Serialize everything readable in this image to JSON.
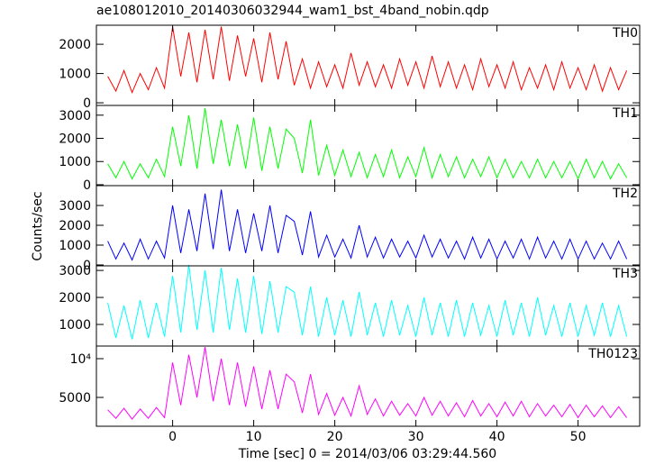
{
  "chart_data": {
    "type": "line",
    "title": "ae108012010_20140306032944_wam1_bst_4band_nobin.qdp",
    "xlabel": "Time [sec] 0 = 2014/03/06 03:29:44.560",
    "ylabel": "Counts/sec",
    "xlim": [
      -9.4,
      57.6
    ],
    "xticks": [
      0,
      10,
      20,
      30,
      40,
      50
    ],
    "x": [
      -8,
      -7,
      -6,
      -5,
      -4,
      -3,
      -2,
      -1,
      0,
      1,
      2,
      3,
      4,
      5,
      6,
      7,
      8,
      9,
      10,
      11,
      12,
      13,
      14,
      15,
      16,
      17,
      18,
      19,
      20,
      21,
      22,
      23,
      24,
      25,
      26,
      27,
      28,
      29,
      30,
      31,
      32,
      33,
      34,
      35,
      36,
      37,
      38,
      39,
      40,
      41,
      42,
      43,
      44,
      45,
      46,
      47,
      48,
      49,
      50,
      51,
      52,
      53,
      54,
      55,
      56
    ],
    "panels": [
      {
        "name": "TH0",
        "color": "#ff0000",
        "ylim": [
          -90,
          2650
        ],
        "yticks": [
          0,
          1000,
          2000
        ],
        "values": [
          900,
          400,
          1100,
          350,
          1000,
          450,
          1200,
          500,
          2600,
          900,
          2400,
          700,
          2500,
          800,
          2600,
          750,
          2300,
          900,
          2200,
          700,
          2400,
          800,
          2100,
          600,
          1500,
          500,
          1400,
          550,
          1300,
          500,
          1700,
          600,
          1400,
          550,
          1300,
          500,
          1500,
          600,
          1400,
          500,
          1600,
          550,
          1400,
          500,
          1300,
          450,
          1500,
          550,
          1300,
          500,
          1400,
          450,
          1200,
          500,
          1300,
          450,
          1400,
          500,
          1200,
          450,
          1300,
          400,
          1200,
          450,
          1100
        ]
      },
      {
        "name": "TH1",
        "color": "#00ff00",
        "ylim": [
          -40,
          3420
        ],
        "yticks": [
          0,
          1000,
          2000,
          3000
        ],
        "values": [
          900,
          300,
          1000,
          250,
          900,
          300,
          1100,
          350,
          2500,
          800,
          3000,
          700,
          3300,
          900,
          2800,
          800,
          2600,
          700,
          2900,
          600,
          2500,
          700,
          2400,
          2000,
          500,
          2800,
          400,
          1700,
          400,
          1500,
          350,
          1400,
          300,
          1300,
          350,
          1500,
          300,
          1200,
          350,
          1600,
          300,
          1300,
          350,
          1200,
          300,
          1100,
          350,
          1200,
          300,
          1100,
          300,
          1000,
          300,
          1100,
          300,
          1000,
          300,
          1000,
          250,
          1100,
          300,
          1000,
          250,
          900,
          300
        ]
      },
      {
        "name": "TH2",
        "color": "#0000ff",
        "ylim": [
          -45,
          4000
        ],
        "yticks": [
          0,
          1000,
          2000,
          3000
        ],
        "values": [
          1200,
          300,
          1100,
          250,
          1300,
          300,
          1200,
          350,
          3000,
          600,
          2800,
          700,
          3600,
          800,
          3800,
          700,
          2800,
          600,
          2600,
          700,
          3000,
          600,
          2500,
          2200,
          500,
          2700,
          400,
          1500,
          400,
          1300,
          350,
          2000,
          400,
          1400,
          350,
          1300,
          400,
          1200,
          350,
          1500,
          400,
          1300,
          350,
          1200,
          300,
          1400,
          350,
          1300,
          300,
          1200,
          350,
          1300,
          300,
          1400,
          350,
          1200,
          300,
          1300,
          300,
          1200,
          300,
          1100,
          300,
          1200,
          300
        ]
      },
      {
        "name": "TH3",
        "color": "#00ffff",
        "ylim": [
          200,
          3170
        ],
        "yticks": [
          1000,
          2000,
          3000
        ],
        "values": [
          1800,
          500,
          1700,
          450,
          1900,
          500,
          1800,
          550,
          2800,
          700,
          3200,
          800,
          3000,
          700,
          3100,
          800,
          2700,
          700,
          2800,
          650,
          2600,
          700,
          2400,
          2200,
          600,
          2400,
          550,
          2000,
          600,
          1900,
          550,
          2200,
          600,
          1800,
          550,
          1900,
          600,
          1700,
          550,
          2000,
          600,
          1800,
          550,
          1900,
          550,
          1800,
          600,
          1700,
          550,
          1900,
          600,
          1800,
          550,
          2000,
          600,
          1700,
          550,
          1800,
          550,
          1700,
          600,
          1800,
          550,
          1700,
          550
        ]
      },
      {
        "name": "TH0123",
        "color": "#ff00ff",
        "ylim": [
          1280,
          11630
        ],
        "yticks": [
          {
            "value": 10000,
            "label": "10⁴"
          },
          5000
        ],
        "values": [
          3400,
          2300,
          3600,
          2200,
          3500,
          2300,
          3700,
          2400,
          9500,
          4000,
          10500,
          5000,
          11500,
          4500,
          10000,
          4000,
          9500,
          3800,
          9000,
          3500,
          8500,
          3500,
          8000,
          7000,
          3000,
          8000,
          2800,
          5500,
          2700,
          5000,
          2600,
          6500,
          2800,
          4800,
          2600,
          4500,
          2700,
          4200,
          2600,
          5000,
          2700,
          4500,
          2600,
          4300,
          2500,
          4600,
          2600,
          4200,
          2500,
          4400,
          2600,
          4500,
          2500,
          4200,
          2600,
          4000,
          2500,
          4100,
          2400,
          4000,
          2500,
          3900,
          2400,
          3800,
          2400
        ]
      }
    ]
  }
}
